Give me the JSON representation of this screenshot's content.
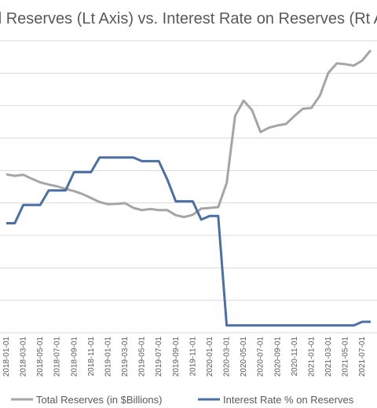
{
  "chart_data": {
    "type": "line",
    "title": "Total Reserves (Lt Axis) vs. Interest Rate on Reserves (Rt Axis)",
    "x": [
      "2018-01-01",
      "2018-02-01",
      "2018-03-01",
      "2018-04-01",
      "2018-05-01",
      "2018-06-01",
      "2018-07-01",
      "2018-08-01",
      "2018-09-01",
      "2018-10-01",
      "2018-11-01",
      "2018-12-01",
      "2019-01-01",
      "2019-02-01",
      "2019-03-01",
      "2019-04-01",
      "2019-05-01",
      "2019-06-01",
      "2019-07-01",
      "2019-08-01",
      "2019-09-01",
      "2019-10-01",
      "2019-11-01",
      "2019-12-01",
      "2020-01-01",
      "2020-02-01",
      "2020-03-01",
      "2020-04-01",
      "2020-05-01",
      "2020-06-01",
      "2020-07-01",
      "2020-08-01",
      "2020-09-01",
      "2020-10-01",
      "2020-11-01",
      "2020-12-01",
      "2021-01-01",
      "2021-02-01",
      "2021-03-01",
      "2021-04-01",
      "2021-05-01",
      "2021-06-01",
      "2021-07-01",
      "2021-08-01"
    ],
    "x_tick_labels": [
      "2018-01-01",
      "2018-03-01",
      "2018-05-01",
      "2018-07-01",
      "2018-09-01",
      "2018-11-01",
      "2019-01-01",
      "2019-03-01",
      "2019-05-01",
      "2019-07-01",
      "2019-09-01",
      "2019-11-01",
      "2020-01-01",
      "2020-03-01",
      "2020-05-01",
      "2020-07-01",
      "2020-09-01",
      "2020-11-01",
      "2021-01-01",
      "2021-03-01",
      "2021-05-01",
      "2021-07-01"
    ],
    "series": [
      {
        "name": "Total Reserves (in $Billions)",
        "axis": "left",
        "color": "#a5a5a5",
        "values": [
          2170,
          2150,
          2165,
          2110,
          2060,
          2030,
          2005,
          1970,
          1940,
          1900,
          1845,
          1790,
          1760,
          1765,
          1775,
          1710,
          1680,
          1695,
          1680,
          1680,
          1610,
          1585,
          1615,
          1700,
          1710,
          1720,
          2050,
          2970,
          3180,
          3050,
          2750,
          2810,
          2840,
          2860,
          2970,
          3070,
          3080,
          3250,
          3560,
          3690,
          3680,
          3660,
          3730,
          3870
        ]
      },
      {
        "name": "Interest Rate % on Reserves",
        "axis": "right",
        "color": "#4a6fa5",
        "values": [
          1.5,
          1.5,
          1.75,
          1.75,
          1.75,
          1.95,
          1.95,
          1.95,
          2.2,
          2.2,
          2.2,
          2.4,
          2.4,
          2.4,
          2.4,
          2.4,
          2.35,
          2.35,
          2.35,
          2.1,
          1.8,
          1.8,
          1.8,
          1.55,
          1.6,
          1.6,
          0.1,
          0.1,
          0.1,
          0.1,
          0.1,
          0.1,
          0.1,
          0.1,
          0.1,
          0.1,
          0.1,
          0.1,
          0.1,
          0.1,
          0.1,
          0.1,
          0.15,
          0.15
        ]
      }
    ],
    "y_left_range": [
      0,
      4000
    ],
    "y_right_range": [
      0,
      4
    ],
    "grid": true,
    "legend_position": "bottom"
  }
}
